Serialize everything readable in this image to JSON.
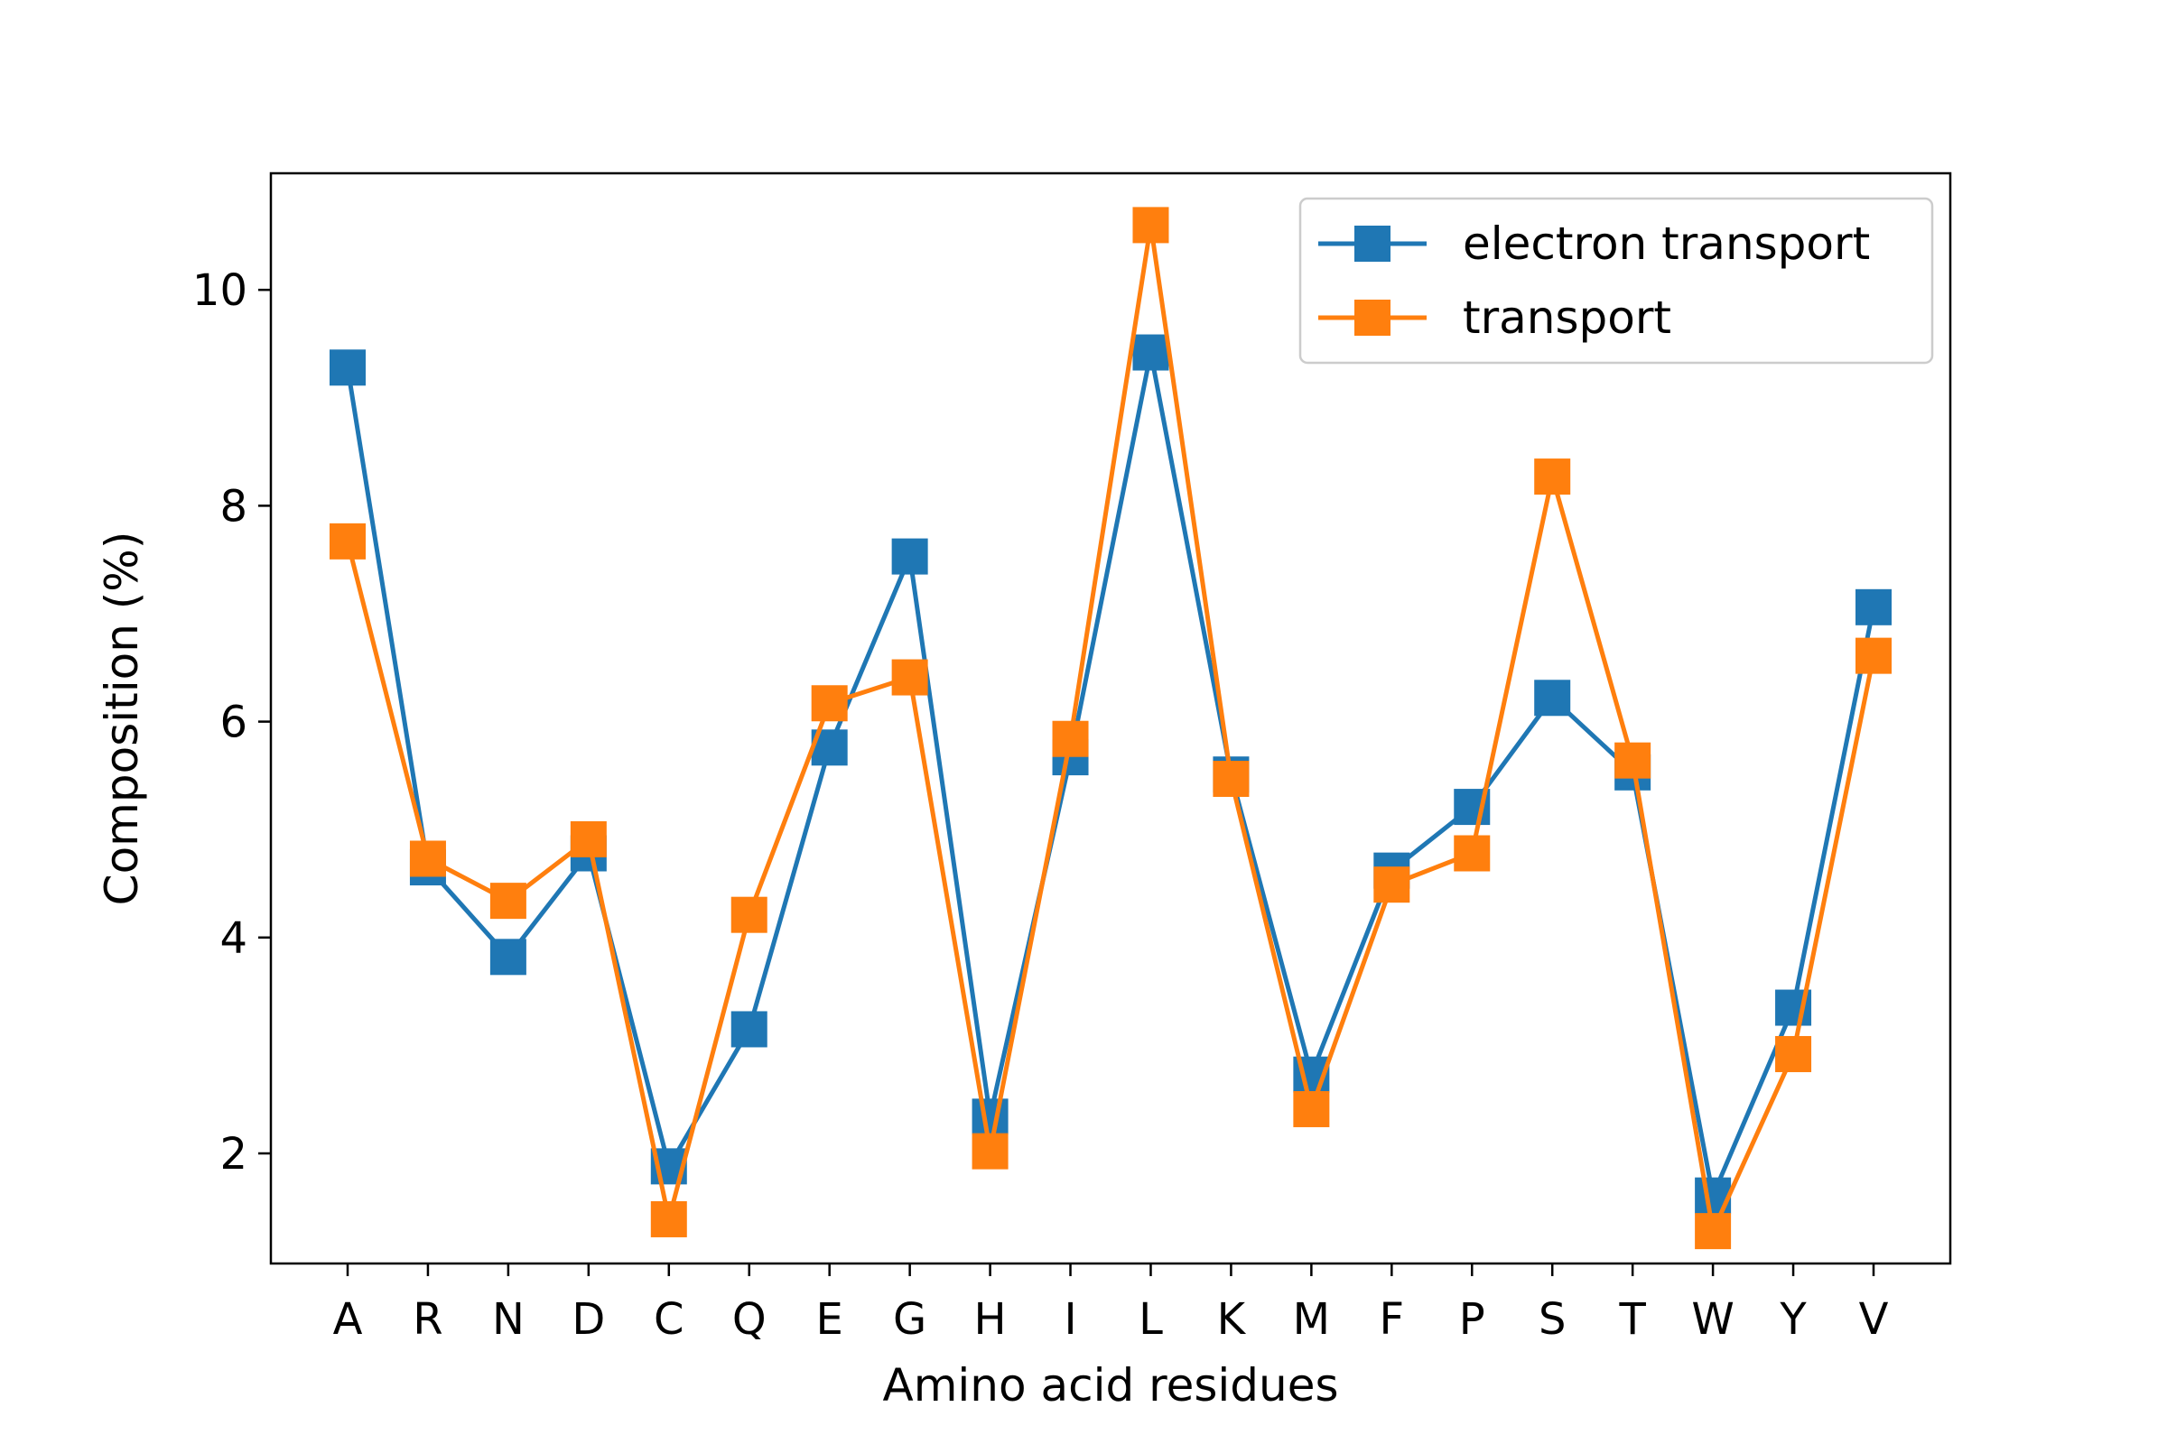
{
  "chart_data": {
    "type": "line",
    "categories": [
      "A",
      "R",
      "N",
      "D",
      "C",
      "Q",
      "E",
      "G",
      "H",
      "I",
      "L",
      "K",
      "M",
      "F",
      "P",
      "S",
      "T",
      "W",
      "Y",
      "V"
    ],
    "series": [
      {
        "name": "electron transport",
        "color": "#1f77b4",
        "marker": "square",
        "values": [
          9.28,
          4.65,
          3.82,
          4.78,
          1.88,
          3.15,
          5.76,
          7.53,
          2.34,
          5.67,
          9.42,
          5.51,
          2.73,
          4.62,
          5.21,
          6.22,
          5.53,
          1.61,
          3.35,
          7.06
        ]
      },
      {
        "name": "transport",
        "color": "#ff7f0e",
        "marker": "square",
        "values": [
          7.67,
          4.73,
          4.34,
          4.91,
          1.39,
          4.21,
          6.17,
          6.41,
          2.02,
          5.84,
          10.6,
          5.47,
          2.41,
          4.49,
          4.78,
          8.27,
          5.64,
          1.28,
          2.92,
          6.61
        ]
      }
    ],
    "xlabel": "Amino acid residues",
    "ylabel": "Composition (%)",
    "ylim": [
      0.98,
      11.08
    ],
    "yticks": [
      2,
      4,
      6,
      8,
      10
    ],
    "grid": false,
    "legend": "upper right"
  }
}
